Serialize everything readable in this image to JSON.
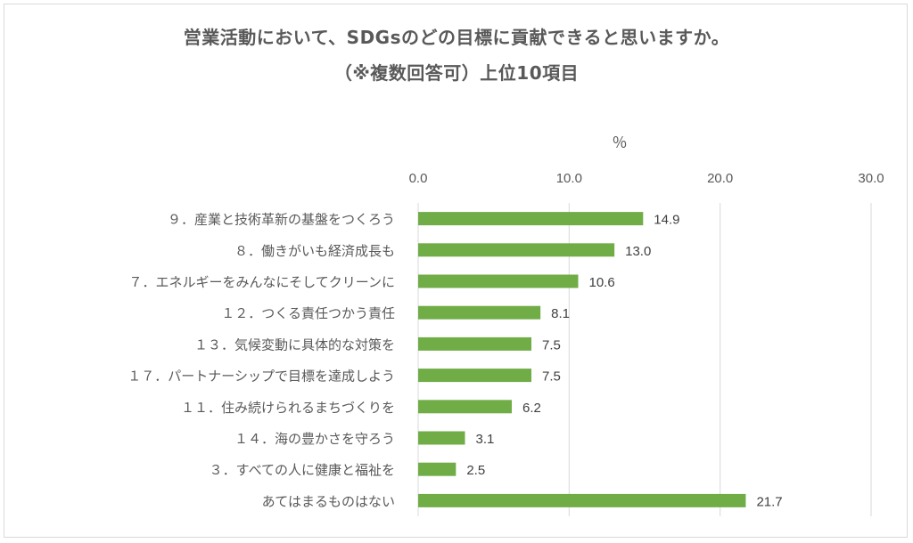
{
  "chart_data": {
    "type": "bar",
    "orientation": "horizontal",
    "title": "営業活動において、SDGsのどの目標に貢献できると思いますか。",
    "subtitle": "（※複数回答可）上位10項目",
    "unit_label": "％",
    "x_axis_position": "top",
    "xlim": [
      0,
      30
    ],
    "x_ticks": [
      "0.0",
      "10.0",
      "20.0",
      "30.0"
    ],
    "grid": true,
    "bar_color": "#70ad47",
    "categories": [
      "９．産業と技術革新の基盤をつくろう",
      "８．働きがいも経済成長も",
      "７．エネルギーをみんなにそしてクリーンに",
      "１２．つくる責任つかう責任",
      "１３．気候変動に具体的な対策を",
      "１７．パートナーシップで目標を達成しよう",
      "１１．住み続けられるまちづくりを",
      "１４．海の豊かさを守ろう",
      "３．すべての人に健康と福祉を",
      "あてはまるものはない"
    ],
    "values": [
      14.9,
      13.0,
      10.6,
      8.1,
      7.5,
      7.5,
      6.2,
      3.1,
      2.5,
      21.7
    ],
    "value_labels": [
      "14.9",
      "13.0",
      "10.6",
      "8.1",
      "7.5",
      "7.5",
      "6.2",
      "3.1",
      "2.5",
      "21.7"
    ]
  }
}
